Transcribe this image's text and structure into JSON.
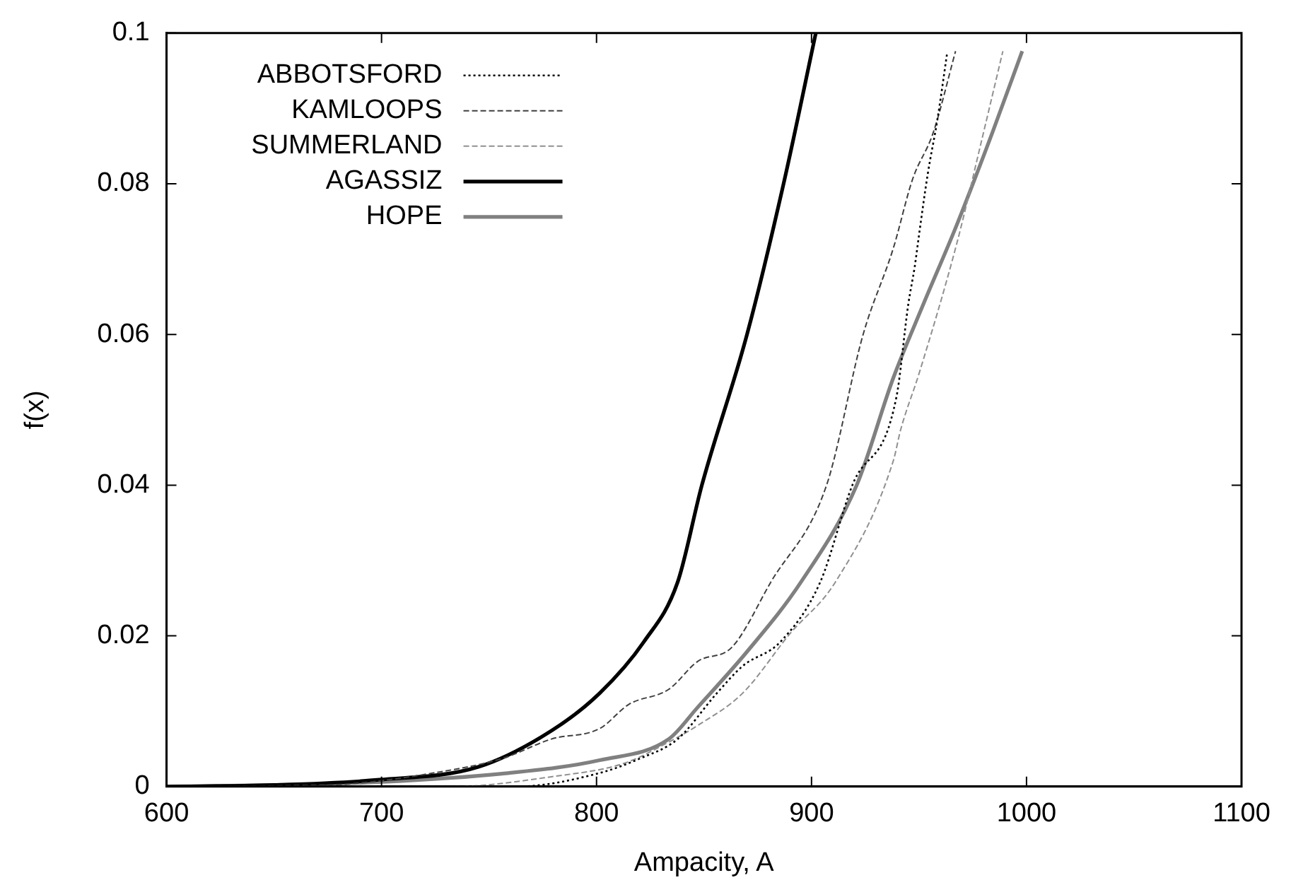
{
  "chart_data": {
    "type": "line",
    "xlabel": "Ampacity, A",
    "ylabel": "f(x)",
    "xlim": [
      600,
      1100
    ],
    "ylim": [
      0,
      0.1
    ],
    "xticks": [
      600,
      700,
      800,
      900,
      1000,
      1100
    ],
    "yticks": [
      0,
      0.02,
      0.04,
      0.06,
      0.08,
      0.1
    ],
    "grid": false,
    "legend": "top left",
    "marker": "none",
    "series": [
      {
        "name": "ABBOTSFORD",
        "color": "#000000",
        "line_style": "dotted",
        "x": [
          600,
          700,
          762.6,
          801.5,
          820,
          837.7,
          856,
          868,
          885.5,
          904,
          919,
          939.5,
          945,
          948,
          950,
          954,
          958.6,
          963
        ],
        "values": [
          0,
          0,
          0,
          0.0018,
          0.0037,
          0.0063,
          0.0124,
          0.016,
          0.0192,
          0.0271,
          0.04,
          0.0517,
          0.064,
          0.069,
          0.0732,
          0.0812,
          0.0886,
          0.0972
        ]
      },
      {
        "name": "KAMLOOPS",
        "color": "#404040",
        "line_style": "dashed",
        "x": [
          600,
          650,
          687,
          722,
          756,
          779,
          801.5,
          815,
          833.6,
          847,
          863,
          881,
          907,
          924,
          938,
          947,
          956.5,
          967
        ],
        "values": [
          0,
          0.0001,
          0.0004,
          0.0017,
          0.0037,
          0.0063,
          0.0077,
          0.0109,
          0.0129,
          0.0166,
          0.0185,
          0.0271,
          0.04,
          0.06,
          0.0714,
          0.0806,
          0.0867,
          0.0976
        ]
      },
      {
        "name": "SUMMERLAND",
        "color": "#909090",
        "line_style": "dashed",
        "x": [
          600,
          733,
          779,
          813,
          833.6,
          847,
          868,
          890,
          911,
          938,
          941.5,
          950,
          967.5,
          979,
          989
        ],
        "values": [
          0,
          0,
          0.0013,
          0.0031,
          0.0059,
          0.0081,
          0.0124,
          0.0203,
          0.0271,
          0.0432,
          0.0474,
          0.0548,
          0.072,
          0.0856,
          0.0976
        ]
      },
      {
        "name": "AGASSIZ",
        "color": "#000000",
        "line_style": "solid",
        "x": [
          600,
          650,
          699,
          745,
          779,
          801.5,
          822,
          837.7,
          849,
          870,
          887,
          902
        ],
        "values": [
          0,
          0.0002,
          0.0009,
          0.0026,
          0.0074,
          0.0124,
          0.0192,
          0.0271,
          0.04,
          0.06,
          0.08,
          0.1
        ]
      },
      {
        "name": "HOPE",
        "color": "#808080",
        "line_style": "solid",
        "x": [
          600,
          650,
          699,
          756,
          801.5,
          833.6,
          847,
          870,
          895,
          921,
          938,
          952,
          967.5,
          984,
          998
        ],
        "values": [
          0,
          0.0002,
          0.0006,
          0.0017,
          0.0035,
          0.0063,
          0.0105,
          0.0179,
          0.0271,
          0.04,
          0.0542,
          0.064,
          0.0745,
          0.0867,
          0.0976
        ]
      }
    ]
  }
}
